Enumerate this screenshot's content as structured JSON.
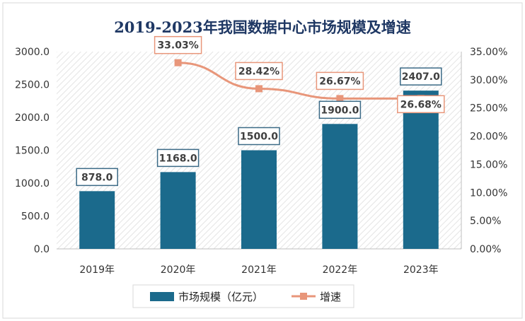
{
  "chart_data": {
    "type": "bar",
    "title": "2019-2023年我国数据中心市场规模及增速",
    "categories": [
      "2019年",
      "2020年",
      "2021年",
      "2022年",
      "2023年"
    ],
    "series": [
      {
        "name": "市场规模（亿元）",
        "type": "bar",
        "axis": "left",
        "color": "#1b6a8c",
        "values": [
          878.0,
          1168.0,
          1500.0,
          1900.0,
          2407.0
        ],
        "labels": [
          "878.0",
          "1168.0",
          "1500.0",
          "1900.0",
          "2407.0"
        ]
      },
      {
        "name": "增速",
        "type": "line",
        "axis": "right",
        "color": "#e8967a",
        "values": [
          null,
          33.03,
          28.42,
          26.67,
          26.68
        ],
        "labels": [
          "",
          "33.03%",
          "28.42%",
          "26.67%",
          "26.68%"
        ]
      }
    ],
    "y_left": {
      "ylim": [
        0,
        3000
      ],
      "ticks": [
        "0.0",
        "500.0",
        "1000.0",
        "1500.0",
        "2000.0",
        "2500.0",
        "3000.0"
      ]
    },
    "y_right": {
      "ylim": [
        0,
        35
      ],
      "ticks": [
        "0.00%",
        "5.00%",
        "10.00%",
        "15.00%",
        "20.00%",
        "25.00%",
        "30.00%",
        "35.00%"
      ]
    },
    "grid": false,
    "legend": "bottom"
  }
}
